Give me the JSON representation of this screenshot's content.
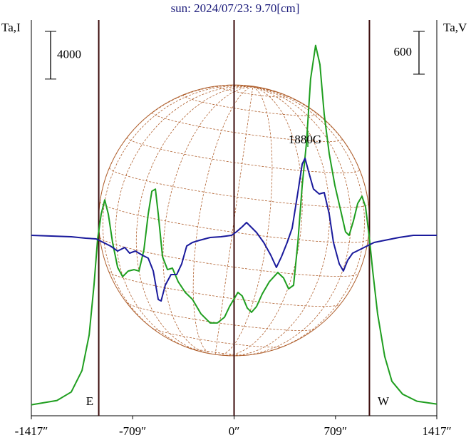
{
  "chart_data": {
    "type": "line",
    "title": "sun: 2024/07/23: 9.70[cm]",
    "y_label": "Ta,I",
    "y2_label": "Ta,V",
    "y_scale": 4000,
    "y2_scale": 600,
    "east_label": "E",
    "west_label": "W",
    "annotation": "1880G",
    "xlim": [
      -1417,
      1417
    ],
    "xticks": [
      {
        "value": -1417,
        "label": "-1417″"
      },
      {
        "value": -709,
        "label": "-709″"
      },
      {
        "value": 0,
        "label": "0″"
      },
      {
        "value": 709,
        "label": "709″"
      },
      {
        "value": 1417,
        "label": "1417″"
      }
    ],
    "ylim": [
      -800,
      32400
    ],
    "y2lim": [
      -2530,
      3020
    ],
    "vlines": [
      -946,
      0,
      946
    ],
    "series": [
      {
        "name": "Ta,I",
        "color": "#1f9e1f",
        "x": [
          -1417,
          -1238,
          -1138,
          -1063,
          -1013,
          -979,
          -954,
          -929,
          -904,
          -879,
          -849,
          -814,
          -779,
          -740,
          -700,
          -665,
          -630,
          -600,
          -575,
          -550,
          -530,
          -500,
          -465,
          -431,
          -391,
          -341,
          -291,
          -232,
          -167,
          -117,
          -67,
          -32,
          -2,
          27,
          57,
          92,
          122,
          157,
          197,
          247,
          306,
          346,
          381,
          416,
          446,
          476,
          506,
          535,
          570,
          600,
          630,
          665,
          705,
          745,
          779,
          804,
          834,
          864,
          894,
          919,
          944,
          969,
          1003,
          1053,
          1103,
          1178,
          1278,
          1417
        ],
        "values": [
          120,
          480,
          1190,
          2990,
          5970,
          10150,
          14030,
          16120,
          17310,
          16120,
          13730,
          11640,
          10870,
          11340,
          11460,
          11340,
          13130,
          16120,
          18030,
          18210,
          16120,
          12540,
          11460,
          11580,
          10450,
          9550,
          8960,
          7760,
          6980,
          6980,
          7460,
          8360,
          8960,
          9550,
          9250,
          8240,
          7880,
          8360,
          9430,
          10450,
          11220,
          10750,
          9850,
          10150,
          13730,
          18510,
          22090,
          27460,
          30270,
          28660,
          24480,
          21190,
          18510,
          16420,
          14630,
          14330,
          15520,
          17010,
          17610,
          16720,
          14330,
          11340,
          7760,
          4180,
          2090,
          1010,
          420,
          180
        ]
      },
      {
        "name": "Ta,V",
        "color": "#1a1a9c",
        "axis": "y2",
        "x": [
          -1417,
          -1138,
          -1038,
          -964,
          -914,
          -864,
          -814,
          -764,
          -730,
          -690,
          -640,
          -600,
          -565,
          -530,
          -510,
          -481,
          -441,
          -401,
          -366,
          -331,
          -291,
          -242,
          -167,
          -92,
          -17,
          17,
          57,
          87,
          117,
          157,
          207,
          257,
          296,
          331,
          371,
          406,
          446,
          476,
          496,
          520,
          555,
          595,
          630,
          665,
          695,
          735,
          764,
          794,
          829,
          879,
          929,
          979,
          1053,
          1153,
          1253,
          1417
        ],
        "values": [
          0,
          -20,
          -40,
          -50,
          -100,
          -150,
          -220,
          -170,
          -250,
          -220,
          -280,
          -320,
          -500,
          -900,
          -920,
          -700,
          -550,
          -550,
          -400,
          -150,
          -100,
          -70,
          -30,
          -20,
          0,
          50,
          120,
          180,
          120,
          40,
          -100,
          -280,
          -450,
          -300,
          -100,
          100,
          600,
          1000,
          1080,
          900,
          650,
          580,
          600,
          300,
          -100,
          -400,
          -500,
          -350,
          -250,
          -200,
          -150,
          -100,
          -70,
          -30,
          0,
          0
        ]
      }
    ]
  }
}
